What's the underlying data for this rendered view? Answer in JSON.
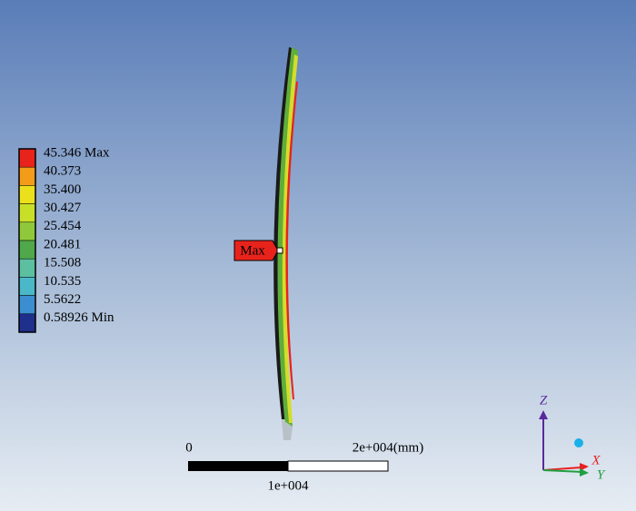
{
  "legend": {
    "entries": [
      {
        "label": "45.346 Max",
        "color": "#e8231c"
      },
      {
        "label": "40.373",
        "color": "#f39c1a"
      },
      {
        "label": "35.400",
        "color": "#ece01d"
      },
      {
        "label": "30.427",
        "color": "#c8df2a"
      },
      {
        "label": "25.454",
        "color": "#8fc93a"
      },
      {
        "label": "20.481",
        "color": "#4fa84a"
      },
      {
        "label": "15.508",
        "color": "#5cc0a0"
      },
      {
        "label": "10.535",
        "color": "#4ab8c8"
      },
      {
        "label": "5.5622",
        "color": "#3b8fd0"
      },
      {
        "label": "0.58926 Min",
        "color": "#1f2f8c"
      }
    ]
  },
  "probe": {
    "label": "Max"
  },
  "scale_bar": {
    "start": "0",
    "end": "2e+004(mm)",
    "middle": "1e+004"
  },
  "triad": {
    "z": "Z",
    "x": "X",
    "y": "Y"
  }
}
